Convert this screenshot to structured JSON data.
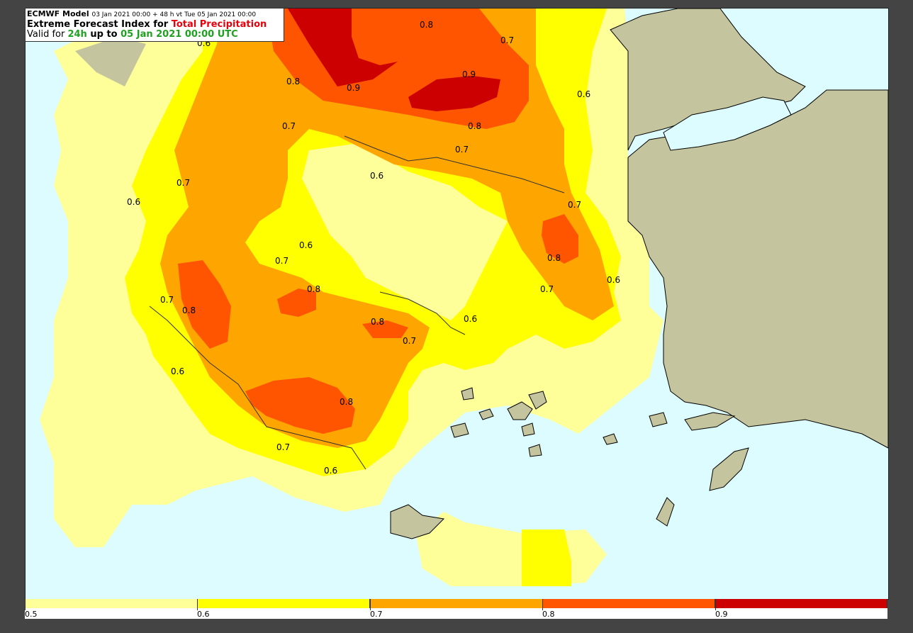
{
  "title": {
    "model": "ECMWF Model",
    "run_info": "03 Jan 2021 00:00 + 48 h vt Tue 05 Jan 2021 00:00",
    "line2_prefix": "Extreme Forecast Index for ",
    "line2_param": "Total Precipitation",
    "line3_prefix": "Valid for ",
    "line3_period": "24h",
    "line3_mid": " up to ",
    "line3_date": "05 Jan 2021 00:00 UTC"
  },
  "map": {
    "sea_color": "#dcfcff",
    "land_color": "#c4c49e",
    "contour_labels": [
      "0.8",
      "0.7",
      "0.6",
      "0.9",
      "0.8",
      "0.9",
      "0.6",
      "0.8",
      "0.7",
      "0.7",
      "0.6",
      "0.7",
      "0.6",
      "0.7",
      "0.8",
      "0.6",
      "0.7",
      "0.8",
      "0.7",
      "0.8",
      "0.6",
      "0.7",
      "0.8",
      "0.7",
      "0.6",
      "0.6",
      "0.8",
      "0.7",
      "0.6"
    ]
  },
  "colorbar": {
    "segments": [
      {
        "label": "0.5",
        "color": "#ffff99"
      },
      {
        "label": "0.6",
        "color": "#ffff00"
      },
      {
        "label": "0.7",
        "color": "#ffa500"
      },
      {
        "label": "0.8",
        "color": "#ff5500"
      },
      {
        "label": "0.9",
        "color": "#cc0000"
      }
    ]
  }
}
